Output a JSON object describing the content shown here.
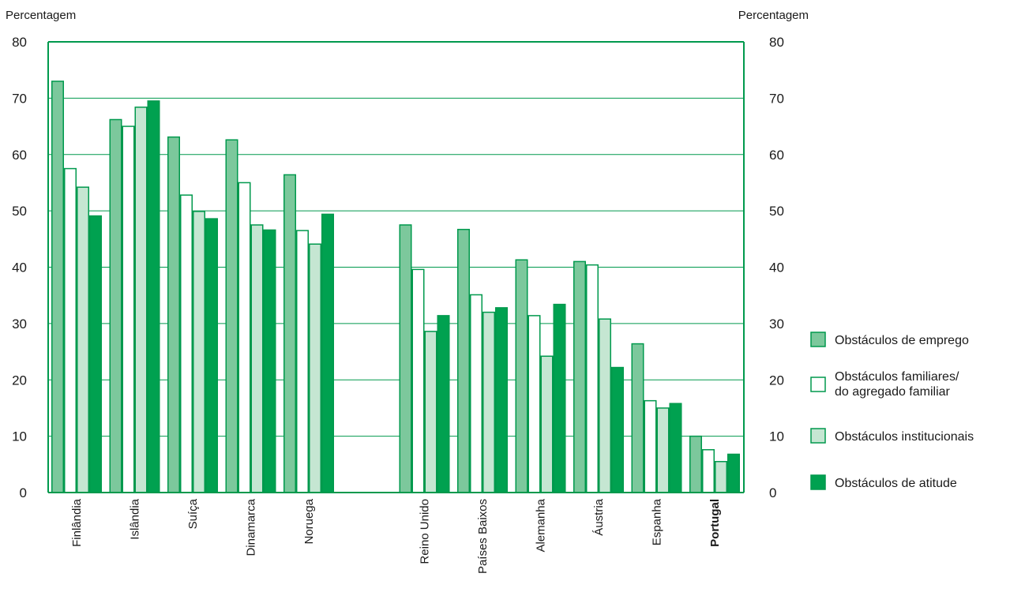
{
  "chart_data": {
    "type": "bar",
    "ylabel_left": "Percentagem",
    "ylabel_right": "Percentagem",
    "ylim": [
      0,
      80
    ],
    "yticks": [
      0,
      10,
      20,
      30,
      40,
      50,
      60,
      70,
      80
    ],
    "grid": true,
    "legend_position": "right",
    "highlight_category": "Portugal",
    "categories": [
      "Finlândia",
      "Islândia",
      "Suíça",
      "Dinamarca",
      "Noruega",
      "Reino Unido",
      "Países Baixos",
      "Alemanha",
      "Áustria",
      "Espanha",
      "Portugal"
    ],
    "gap_after_index": 4,
    "series": [
      {
        "name": "Obstáculos de emprego",
        "values": [
          73,
          66.2,
          63.1,
          62.6,
          56.4,
          47.5,
          46.7,
          41.3,
          41,
          26.4,
          10
        ],
        "color": "#7cc89c",
        "stroke": "#00994d"
      },
      {
        "name": "Obstáculos familiares/ do agregado familiar",
        "name_lines": [
          "Obstáculos familiares/",
          "do agregado familiar"
        ],
        "values": [
          57.5,
          65,
          52.8,
          55,
          46.5,
          39.6,
          35.1,
          31.4,
          40.4,
          16.3,
          7.6
        ],
        "color": "#ffffff",
        "stroke": "#00994d"
      },
      {
        "name": "Obstáculos institucionais",
        "values": [
          54.2,
          68.4,
          49.9,
          47.5,
          44.1,
          28.6,
          32,
          24.2,
          30.8,
          15,
          5.5
        ],
        "color": "#c5e6d2",
        "stroke": "#00994d"
      },
      {
        "name": "Obstáculos de atitude",
        "values": [
          49.1,
          69.5,
          48.6,
          46.6,
          49.4,
          31.4,
          32.8,
          33.4,
          22.2,
          15.8,
          6.8
        ],
        "color": "#00a150",
        "stroke": "#00994d"
      }
    ],
    "colors": {
      "axis": "#00994d",
      "grid": "#00994d",
      "highlight_text": "#00994d"
    }
  }
}
